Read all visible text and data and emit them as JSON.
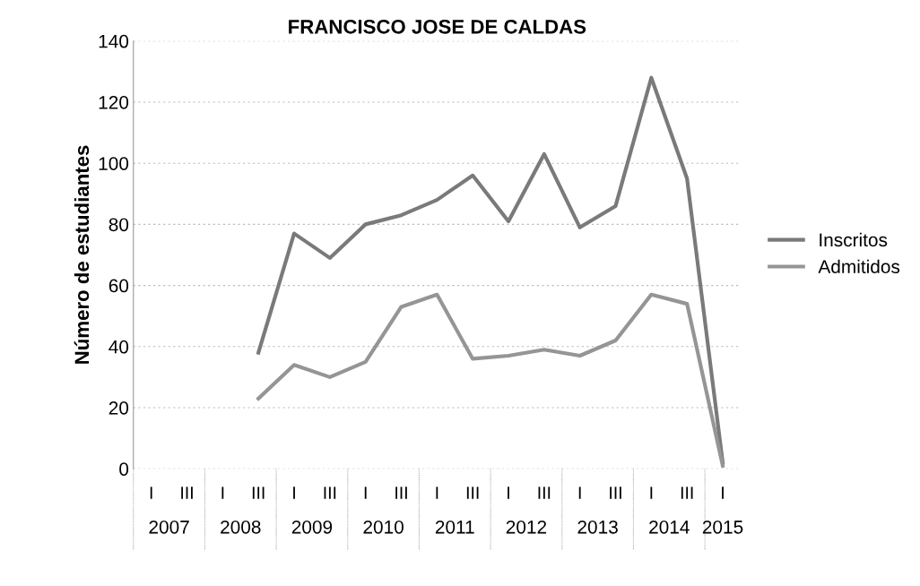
{
  "chart_data": {
    "type": "line",
    "title": "FRANCISCO JOSE DE CALDAS",
    "ylabel": "Número de estudiantes",
    "categories": [
      "I",
      "III",
      "I",
      "III",
      "I",
      "III",
      "I",
      "III",
      "I",
      "III",
      "I",
      "III",
      "I",
      "III",
      "I",
      "III",
      "I"
    ],
    "annotations": [
      "2007",
      "2008",
      "2009",
      "2010",
      "2011",
      "2012",
      "2013",
      "2014",
      "2015"
    ],
    "series": [
      {
        "name": "Inscritos",
        "color": "#7a7a7a",
        "values": [
          null,
          null,
          null,
          38,
          77,
          69,
          80,
          83,
          88,
          96,
          81,
          103,
          79,
          86,
          128,
          95,
          2
        ]
      },
      {
        "name": "Admitidos",
        "color": "#959595",
        "values": [
          null,
          null,
          null,
          23,
          34,
          30,
          35,
          53,
          57,
          36,
          37,
          39,
          37,
          42,
          57,
          54,
          1
        ]
      }
    ],
    "ylim": [
      0,
      140
    ],
    "yticks": [
      0,
      20,
      40,
      60,
      80,
      100,
      120,
      140
    ],
    "grid": "y",
    "legend": "right",
    "marker": "none",
    "line_style": "solid"
  }
}
